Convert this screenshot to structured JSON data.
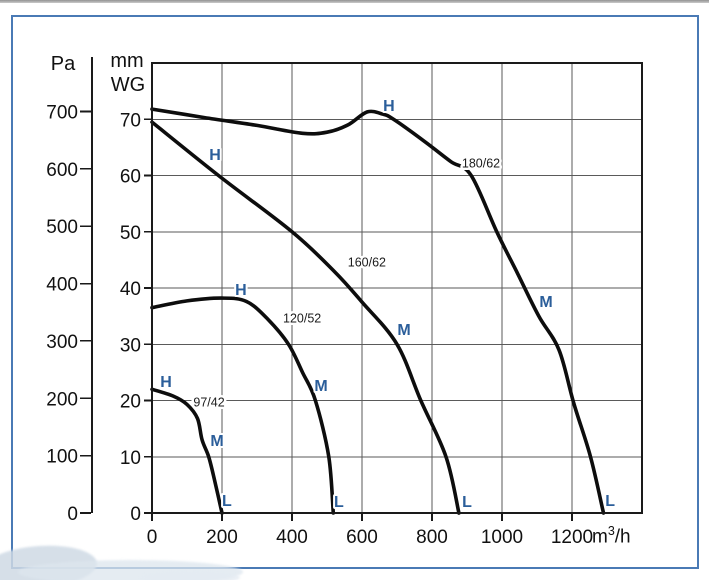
{
  "chart_data": {
    "type": "line",
    "description_labels": {
      "pa_axis_label": "Pa",
      "mm_axis_label_line1": "mm",
      "mm_axis_label_line2": "WG",
      "x_unit_prefix": "m",
      "x_unit_sup": "3",
      "x_unit_suffix": "/h"
    },
    "x_axis": {
      "ticks": [
        0,
        200,
        400,
        600,
        800,
        1000,
        1200
      ],
      "range": [
        0,
        1400
      ],
      "grid": true
    },
    "y_axis_pa": {
      "ticks": [
        700,
        600,
        500,
        400,
        300,
        200,
        100,
        0
      ],
      "range_pa": [
        0,
        785
      ]
    },
    "y_axis_mmwg": {
      "ticks": [
        70,
        60,
        50,
        40,
        30,
        20,
        10,
        0
      ],
      "range_mm": [
        0,
        80
      ],
      "grid": true
    },
    "series": [
      {
        "name": "97/42",
        "units": "x: m3/h, y: mm WG",
        "points": [
          [
            0,
            22
          ],
          [
            60,
            20.8
          ],
          [
            100,
            19.3
          ],
          [
            130,
            16.8
          ],
          [
            143,
            13
          ],
          [
            162,
            10
          ],
          [
            180,
            5.5
          ],
          [
            200,
            0
          ]
        ],
        "model_label": {
          "text": "97/42",
          "u": 163,
          "mm": 19.7
        },
        "speed_labels": [
          {
            "text": "H",
            "u": 40,
            "mm": 23.5
          },
          {
            "text": "M",
            "u": 186,
            "mm": 13.0
          },
          {
            "text": "L",
            "u": 214,
            "mm": 2.3
          }
        ]
      },
      {
        "name": "120/52",
        "units": "x: m3/h, y: mm WG",
        "points": [
          [
            0,
            36.5
          ],
          [
            100,
            37.7
          ],
          [
            200,
            38.2
          ],
          [
            270,
            37.6
          ],
          [
            330,
            34.5
          ],
          [
            390,
            30
          ],
          [
            430,
            25
          ],
          [
            467,
            20
          ],
          [
            505,
            10
          ],
          [
            518,
            0
          ]
        ],
        "model_label": {
          "text": "120/52",
          "u": 429,
          "mm": 34.7
        },
        "speed_labels": [
          {
            "text": "H",
            "u": 254,
            "mm": 39.8
          },
          {
            "text": "M",
            "u": 483,
            "mm": 22.8
          },
          {
            "text": "L",
            "u": 534,
            "mm": 2.1
          }
        ]
      },
      {
        "name": "160/62",
        "units": "x: m3/h, y: mm WG",
        "points": [
          [
            0,
            69.5
          ],
          [
            190,
            60
          ],
          [
            400,
            50
          ],
          [
            520,
            43
          ],
          [
            600,
            37.5
          ],
          [
            700,
            30
          ],
          [
            768,
            20
          ],
          [
            840,
            10
          ],
          [
            877,
            0
          ]
        ],
        "model_label": {
          "text": "160/62",
          "u": 614,
          "mm": 44.6
        },
        "speed_labels": [
          {
            "text": "H",
            "u": 180,
            "mm": 63.8
          },
          {
            "text": "M",
            "u": 720,
            "mm": 32.7
          },
          {
            "text": "L",
            "u": 900,
            "mm": 2.1
          }
        ]
      },
      {
        "name": "180/62",
        "units": "x: m3/h, y: mm WG",
        "points": [
          [
            0,
            71.8
          ],
          [
            150,
            70.3
          ],
          [
            300,
            68.9
          ],
          [
            430,
            67.5
          ],
          [
            500,
            67.7
          ],
          [
            560,
            69
          ],
          [
            615,
            71.3
          ],
          [
            660,
            70.9
          ],
          [
            690,
            70
          ],
          [
            780,
            66
          ],
          [
            853,
            62.5
          ],
          [
            912,
            60
          ],
          [
            985,
            50
          ],
          [
            1045,
            42.5
          ],
          [
            1105,
            35
          ],
          [
            1163,
            29
          ],
          [
            1205,
            19.5
          ],
          [
            1253,
            10
          ],
          [
            1290,
            0
          ]
        ],
        "model_label": {
          "text": "180/62",
          "u": 940,
          "mm": 62.2
        },
        "speed_labels": [
          {
            "text": "H",
            "u": 677,
            "mm": 72.5
          },
          {
            "text": "M",
            "u": 1126,
            "mm": 37.7
          },
          {
            "text": "L",
            "u": 1309,
            "mm": 2.3
          }
        ]
      }
    ],
    "colors": {
      "curve": "#0d0d0d",
      "speed_label_blue": "#2b5e9a",
      "grid": "#5a5a5a",
      "frame_blue": "#4a7ab5"
    }
  }
}
